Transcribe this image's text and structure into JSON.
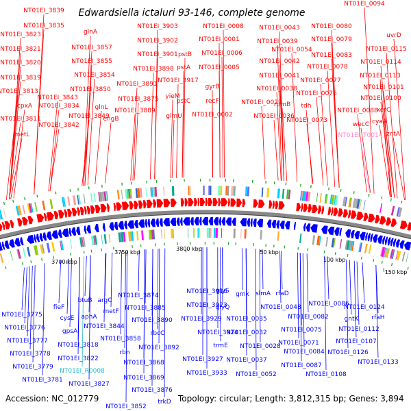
{
  "title": "Edwardsiella ictaluri 93-146, complete genome",
  "accession": "Accession: NC_012779",
  "summary": "Topology: circular; Length: 3,812,315 bp; Genes: 3,894",
  "colors": {
    "forward": "#ff0000",
    "reverse": "#0000ff",
    "forward_rna": "#ff88cc",
    "reverse_rna": "#22bbcc",
    "backbone": "#888888",
    "marker": "#22aa22"
  },
  "position_ticks": [
    "3700 kbp",
    "3750 kbp",
    "3800 kbp",
    "50 kbp",
    "100 kbp",
    "150 kbp"
  ],
  "forward_labels": [
    "NT01EI_3839",
    "NT01EI_3835",
    "NT01EI_3823",
    "NT01EI_3821",
    "NT01EI_3820",
    "NT01EI_3819",
    "NT01EI_3813",
    "cpxA",
    "NT01EI_3811",
    "metL",
    "NT01EI_3834",
    "NT01EI_3843",
    "NT01EI_3842",
    "glnA",
    "NT01EI_3857",
    "NT01EI_3855",
    "NT01EI_3854",
    "NT01EI_3850",
    "NT01EI_3849",
    "glnL",
    "engB",
    "NT01EI_3875",
    "NT01EI_3891",
    "NT01EI_3889",
    "NT01EI_3898",
    "yieM",
    "NT01EI_3903",
    "NT01EI_3902",
    "NT01EI_3901",
    "pstB",
    "pstA",
    "NT01EI_3917",
    "pstC",
    "glmU",
    "NT01EI_0008",
    "NT01EI_0001",
    "NT01EI_0006",
    "NT01EI_0005",
    "gyrB",
    "recF",
    "NT01EI_0002",
    "NT01EI_0043",
    "NT01EI_0039",
    "NT01EI_0054",
    "NT01EI_0042",
    "NT01EI_0041",
    "NT01EI_0038",
    "NT01EI_0029",
    "NT01EI_0036",
    "rpmB",
    "NT01EI_0094",
    "NT01EI_0080",
    "NT01EI_0079",
    "NT01EI_0083",
    "NT01EI_0078",
    "NT01EI_0077",
    "NT01EI_0076",
    "tdh",
    "NT01EI_0073",
    "NT01EI_0101",
    "NT01EI_0100",
    "NT01EI_0088",
    "wecC",
    "NT01EI_T0014",
    "cyaA",
    "xerC",
    "NT01EI_0113",
    "NT01EI_0114",
    "NT01EI_0115",
    "uvrD",
    "zntA"
  ],
  "reverse_labels": [
    "NT01EI_3775",
    "NT01EI_3776",
    "NT01EI_3777",
    "NT01EI_3778",
    "NT01EI_3779",
    "NT01EI_3781",
    "fieF",
    "cysE",
    "gpsA",
    "NT01EI_3818",
    "NT01EI_3822",
    "NT01EI_R0008",
    "NT01EI_3827",
    "btuB",
    "aphA",
    "argC",
    "metF",
    "NT01EI_3844",
    "NT01EI_3858",
    "rbn",
    "NT01EI_3852",
    "NT01EI_3874",
    "NT01EI_3885",
    "NT01EI_3890",
    "rbcC",
    "NT01EI_3892",
    "NT01EI_3868",
    "NT01EI_3869",
    "NT01EI_3876",
    "trkD",
    "NT01EI_3916",
    "NT01EI_3923",
    "NT01EI_3929",
    "NT01EI_3924",
    "trmE",
    "NT01EI_3927",
    "NT01EI_3933",
    "glyS",
    "glyQ",
    "gmk",
    "slmA",
    "NT01EI_0035",
    "NT01EI_0048",
    "NT01EI_0032",
    "NT01EI_0028",
    "NT01EI_0037",
    "NT01EI_0052",
    "rfaD",
    "NT01EI_0086",
    "NT01EI_0082",
    "NT01EI_0075",
    "NT01EI_0071",
    "NT01EI_0084",
    "NT01EI_0087",
    "NT01EI_0108",
    "NT01EI_0124",
    "NT01EI_0112",
    "NT01EI_0107",
    "gntK",
    "rfaH",
    "NT01EI_0126",
    "NT01EI_0133"
  ]
}
